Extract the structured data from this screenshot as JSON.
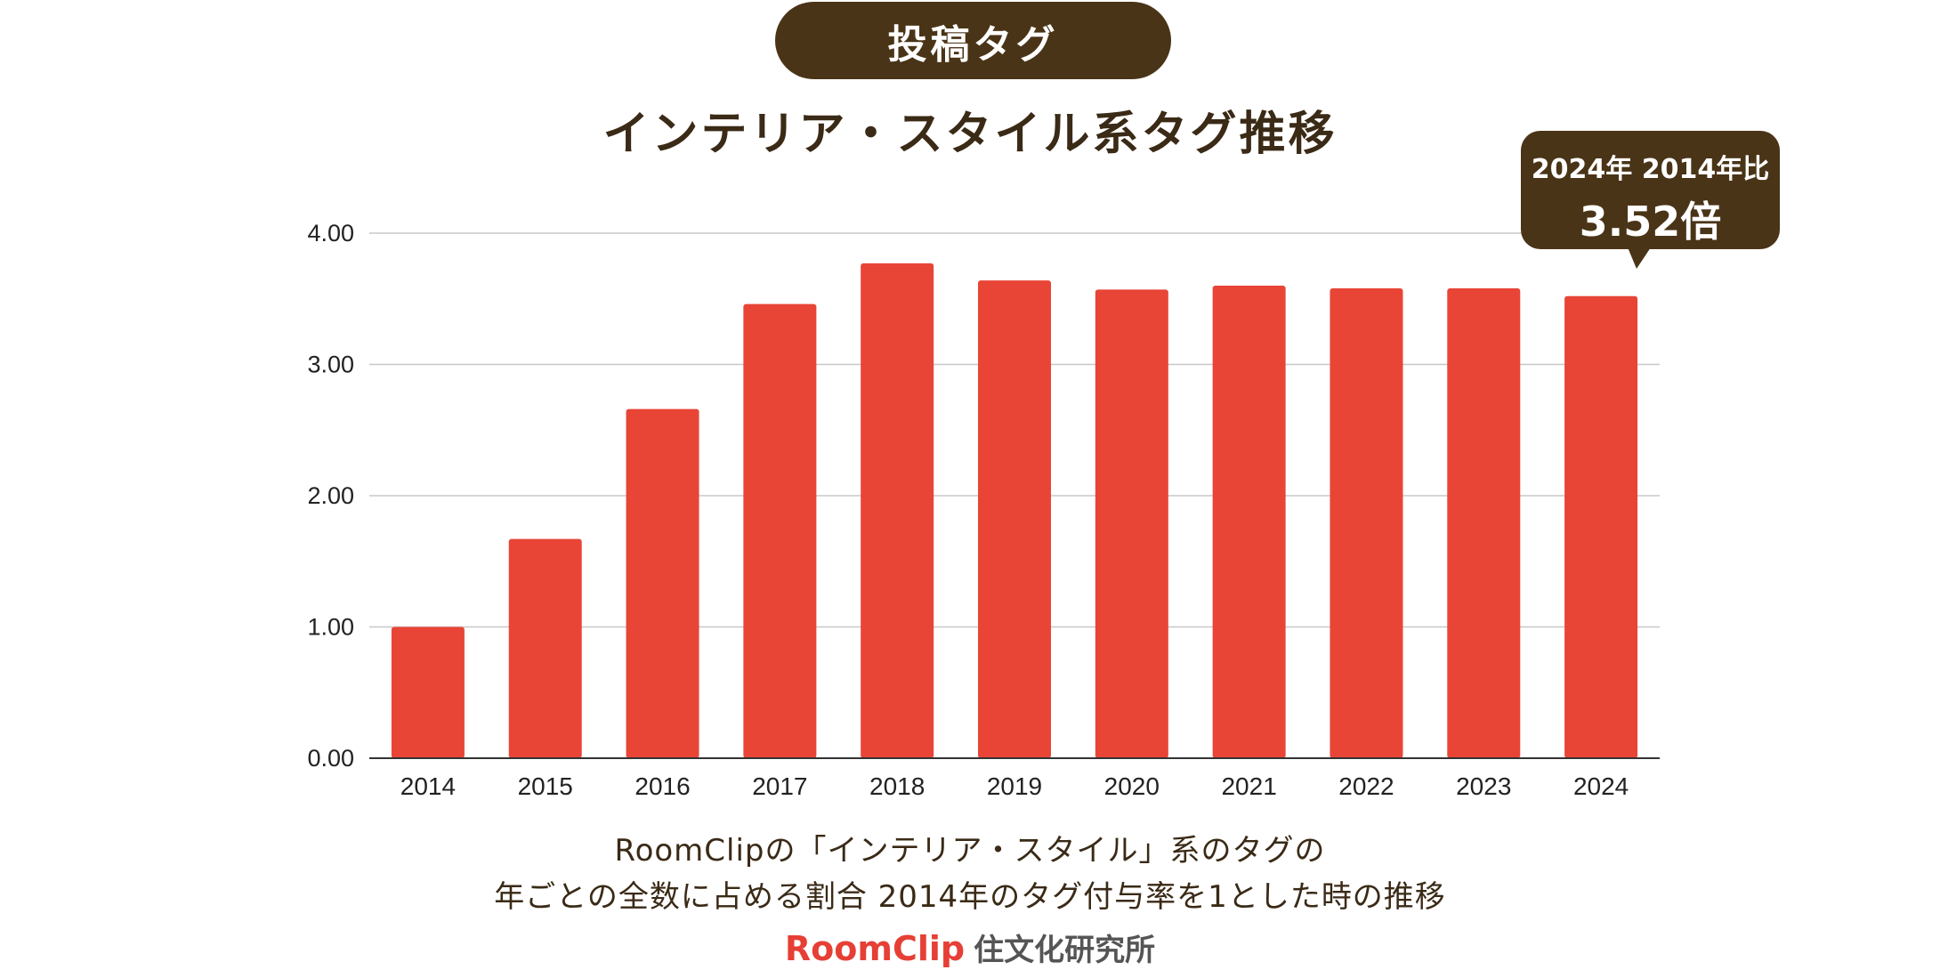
{
  "header": {
    "pill_label": "投稿タグ",
    "title": "インテリア・スタイル系タグ推移"
  },
  "callout": {
    "line1": "2024年 2014年比",
    "line2": "3.52倍"
  },
  "caption": {
    "line1": "RoomClipの「インテリア・スタイル」系のタグの",
    "line2": "年ごとの全数に占める割合 2014年のタグ付与率を1とした時の推移"
  },
  "footer": {
    "brand": "RoomClip",
    "lab": "住文化研究所"
  },
  "colors": {
    "bar": "#e84537",
    "dark": "#4a3417"
  },
  "chart_data": {
    "type": "bar",
    "title": "インテリア・スタイル系タグ推移",
    "xlabel": "",
    "ylabel": "",
    "categories": [
      "2014",
      "2015",
      "2016",
      "2017",
      "2018",
      "2019",
      "2020",
      "2021",
      "2022",
      "2023",
      "2024"
    ],
    "values": [
      1.0,
      1.67,
      2.66,
      3.46,
      3.77,
      3.64,
      3.57,
      3.6,
      3.58,
      3.58,
      3.52
    ],
    "ylim": [
      0,
      4
    ],
    "yticks": [
      "0.00",
      "1.00",
      "2.00",
      "3.00",
      "4.00"
    ],
    "grid": true
  }
}
